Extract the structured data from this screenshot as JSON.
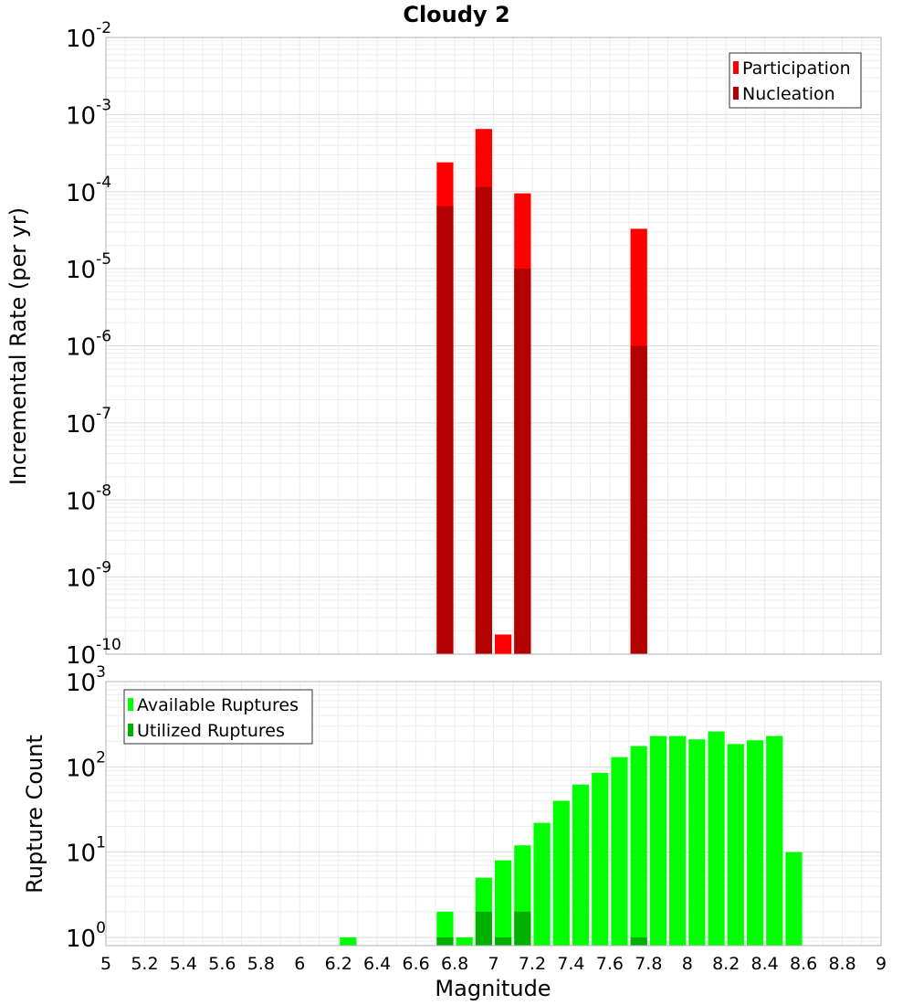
{
  "chart_data": [
    {
      "type": "bar",
      "title": "Cloudy 2",
      "xlabel": "",
      "ylabel": "Incremental Rate (per yr)",
      "yscale": "log",
      "ylim": [
        1e-10,
        0.01
      ],
      "xlim": [
        5,
        9
      ],
      "bin_width": 0.1,
      "y_ticks": [
        {
          "base": "10",
          "exp": "-10"
        },
        {
          "base": "10",
          "exp": "-9"
        },
        {
          "base": "10",
          "exp": "-8"
        },
        {
          "base": "10",
          "exp": "-7"
        },
        {
          "base": "10",
          "exp": "-6"
        },
        {
          "base": "10",
          "exp": "-5"
        },
        {
          "base": "10",
          "exp": "-4"
        },
        {
          "base": "10",
          "exp": "-3"
        },
        {
          "base": "10",
          "exp": "-2"
        }
      ],
      "grid": true,
      "legend_position": "top-right",
      "series": [
        {
          "name": "Participation",
          "color": "#ff0000",
          "points": [
            [
              6.75,
              0.00024
            ],
            [
              6.95,
              0.00065
            ],
            [
              7.05,
              1.8e-10
            ],
            [
              7.15,
              9.5e-05
            ],
            [
              7.75,
              3.3e-05
            ]
          ]
        },
        {
          "name": "Nucleation",
          "color": "#b30000",
          "points": [
            [
              6.75,
              6.5e-05
            ],
            [
              6.95,
              0.000115
            ],
            [
              7.15,
              1e-05
            ],
            [
              7.75,
              1e-06
            ]
          ]
        }
      ]
    },
    {
      "type": "bar",
      "title": "",
      "xlabel": "Magnitude",
      "ylabel": "Rupture Count",
      "yscale": "log",
      "ylim": [
        0.8,
        1000
      ],
      "xlim": [
        5,
        9
      ],
      "bin_width": 0.1,
      "y_ticks": [
        {
          "base": "10",
          "exp": "0"
        },
        {
          "base": "10",
          "exp": "1"
        },
        {
          "base": "10",
          "exp": "2"
        },
        {
          "base": "10",
          "exp": "3"
        }
      ],
      "x_ticks": [
        "5",
        "5.2",
        "5.4",
        "5.6",
        "5.8",
        "6",
        "6.2",
        "6.4",
        "6.6",
        "6.8",
        "7",
        "7.2",
        "7.4",
        "7.6",
        "7.8",
        "8",
        "8.2",
        "8.4",
        "8.6",
        "8.8",
        "9"
      ],
      "grid": true,
      "legend_position": "top-left",
      "series": [
        {
          "name": "Available Ruptures",
          "color": "#00ff00",
          "points": [
            [
              6.25,
              1
            ],
            [
              6.75,
              2
            ],
            [
              6.85,
              1
            ],
            [
              6.95,
              5
            ],
            [
              7.05,
              8
            ],
            [
              7.15,
              12
            ],
            [
              7.25,
              22
            ],
            [
              7.35,
              40
            ],
            [
              7.45,
              62
            ],
            [
              7.55,
              85
            ],
            [
              7.65,
              130
            ],
            [
              7.75,
              175
            ],
            [
              7.85,
              230
            ],
            [
              7.95,
              230
            ],
            [
              8.05,
              210
            ],
            [
              8.15,
              260
            ],
            [
              8.25,
              185
            ],
            [
              8.35,
              205
            ],
            [
              8.45,
              230
            ],
            [
              8.55,
              10
            ]
          ]
        },
        {
          "name": "Utilized Ruptures",
          "color": "#00b000",
          "points": [
            [
              6.75,
              1
            ],
            [
              6.95,
              2
            ],
            [
              7.05,
              1
            ],
            [
              7.15,
              2
            ],
            [
              7.75,
              1
            ]
          ]
        }
      ]
    }
  ]
}
